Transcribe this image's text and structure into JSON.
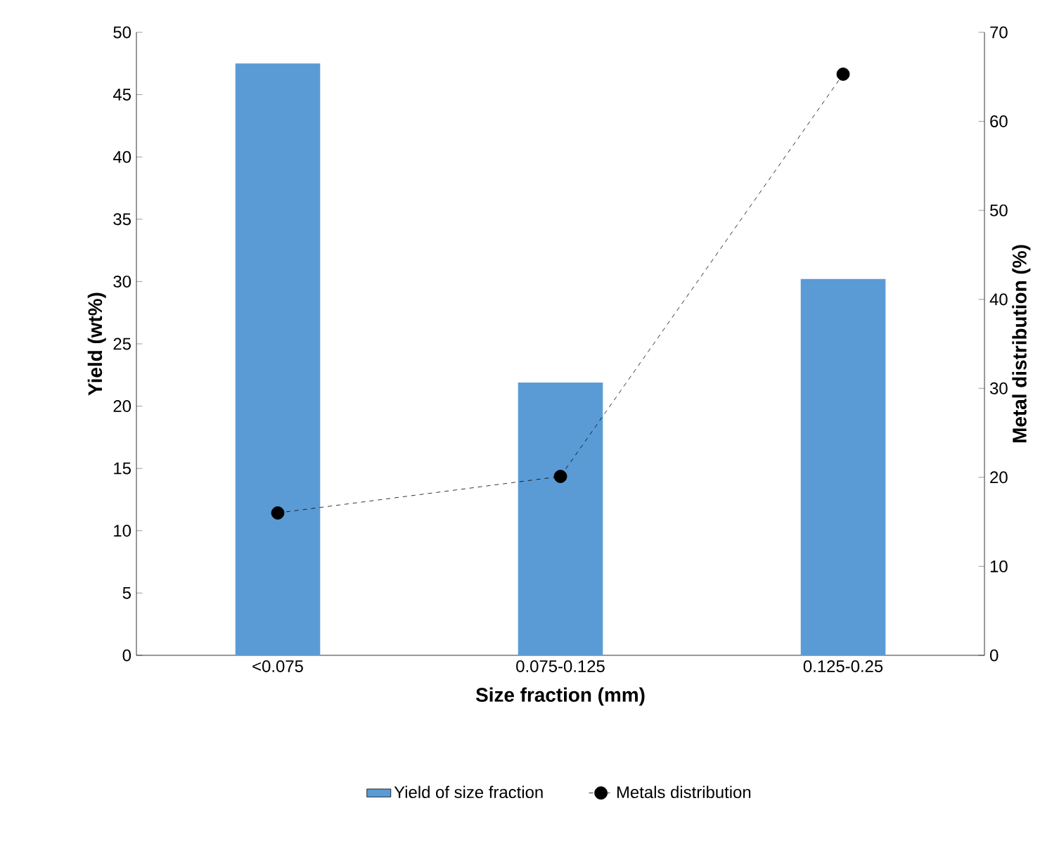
{
  "chart_data": {
    "type": "bar",
    "categories": [
      "<0.075",
      "0.075-0.125",
      "0.125-0.25"
    ],
    "xlabel": "Size fraction (mm)",
    "ylabel": "Yield (wt%)",
    "y2label": "Metal distribution (%)",
    "series": [
      {
        "name": "Yield of size fraction",
        "color": "#5b9bd5",
        "values": [
          47.5,
          21.9,
          30.2
        ]
      },
      {
        "name": "Metals distribution",
        "type": "line",
        "axis": "y2",
        "color": "#000000",
        "marker": "circle",
        "line_style": "dashed",
        "values": [
          16.0,
          20.1,
          65.3
        ]
      }
    ],
    "ylim": [
      0,
      50
    ],
    "yticks": [
      0,
      5,
      10,
      15,
      20,
      25,
      30,
      35,
      40,
      45,
      50
    ],
    "y2lim": [
      0,
      70
    ],
    "y2ticks": [
      0,
      10,
      20,
      30,
      40,
      50,
      60,
      70
    ],
    "legend": "bottom"
  }
}
